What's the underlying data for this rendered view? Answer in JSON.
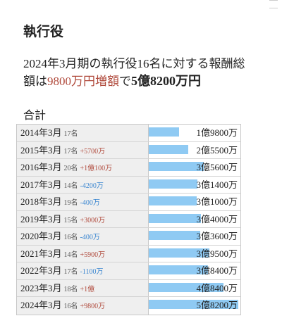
{
  "header": {
    "title": "執行役"
  },
  "summary": {
    "text": "2024年3月期の執行役16名に対する報酬総額は",
    "highlight": "9800万円増額",
    "connector": "で",
    "total": "5億8200万円"
  },
  "table": {
    "title": "合計",
    "rows": [
      {
        "year": "2014年3月",
        "count": "17名",
        "amount": {
          "value": 19800,
          "label": "1億9800万"
        }
      },
      {
        "year": "2015年3月",
        "count": "17名",
        "change": "+5700万",
        "amount": {
          "value": 25500,
          "label": "2億5500万"
        }
      },
      {
        "year": "2016年3月",
        "count": "20名",
        "change": "+1億100万",
        "amount": {
          "value": 35600,
          "label": "3億5600万"
        }
      },
      {
        "year": "2017年3月",
        "count": "14名",
        "change": "-4200万",
        "amount": {
          "value": 31400,
          "label": "3億1400万"
        }
      },
      {
        "year": "2018年3月",
        "count": "19名",
        "change": "-400万",
        "amount": {
          "value": 31000,
          "label": "3億1000万"
        }
      },
      {
        "year": "2019年3月",
        "count": "15名",
        "change": "+3000万",
        "amount": {
          "value": 34000,
          "label": "3億4000万"
        }
      },
      {
        "year": "2020年3月",
        "count": "16名",
        "change": "-400万",
        "amount": {
          "value": 33600,
          "label": "3億3600万"
        }
      },
      {
        "year": "2021年3月",
        "count": "14名",
        "change": "+5900万",
        "amount": {
          "value": 39500,
          "label": "3億9500万"
        }
      },
      {
        "year": "2022年3月",
        "count": "17名",
        "change": "-1100万",
        "amount": {
          "value": 38400,
          "label": "3億8400万"
        }
      },
      {
        "year": "2023年3月",
        "count": "18名",
        "change": "+1億",
        "amount": {
          "value": 48400,
          "label": "4億8400万"
        }
      },
      {
        "year": "2024年3月",
        "count": "16名",
        "change": "+9800万",
        "amount": {
          "value": 58200,
          "label": "5億8200万"
        }
      }
    ]
  }
}
